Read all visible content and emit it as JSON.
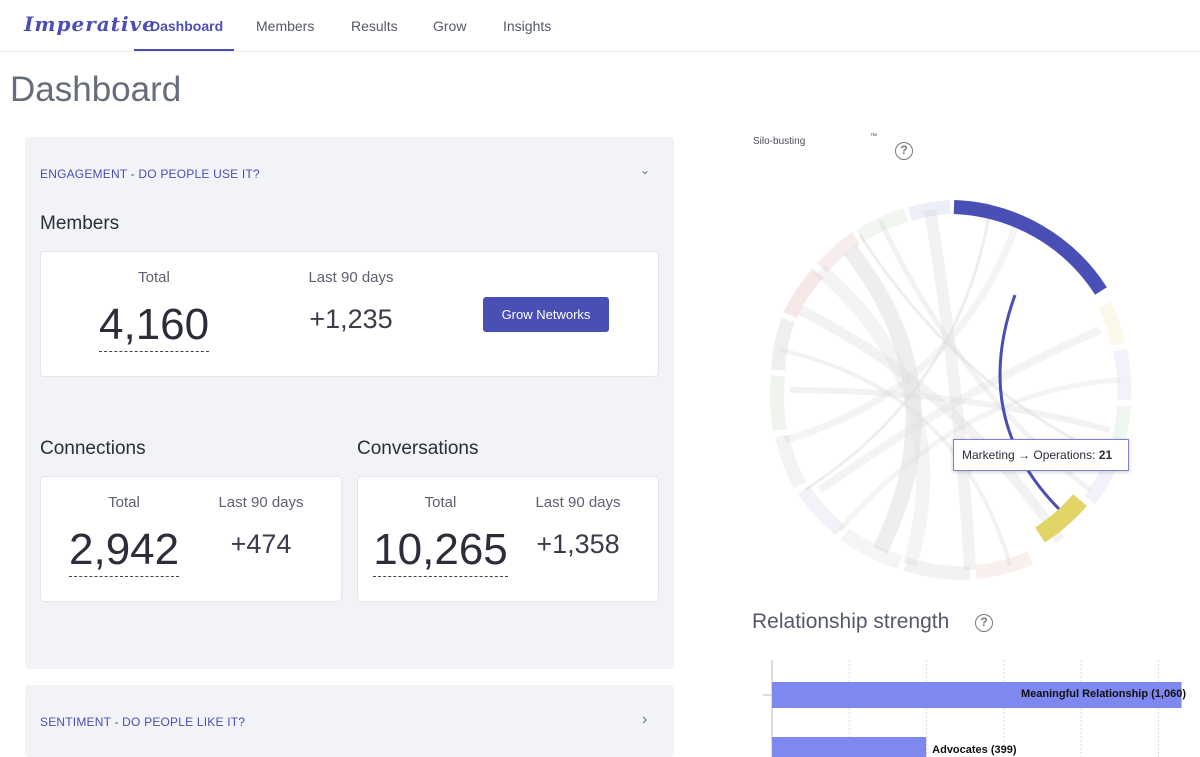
{
  "app": {
    "logo": "Imperative"
  },
  "nav": {
    "tabs": [
      {
        "label": "Dashboard",
        "active": true
      },
      {
        "label": "Members",
        "active": false
      },
      {
        "label": "Results",
        "active": false
      },
      {
        "label": "Grow",
        "active": false
      },
      {
        "label": "Insights",
        "active": false
      }
    ]
  },
  "page": {
    "title": "Dashboard"
  },
  "engagement": {
    "header": "ENGAGEMENT - DO PEOPLE USE IT?",
    "members": {
      "title": "Members",
      "total_label": "Total",
      "total_value": "4,160",
      "recent_label": "Last 90 days",
      "recent_value": "+1,235",
      "button_label": "Grow Networks"
    },
    "connections": {
      "title": "Connections",
      "total_label": "Total",
      "total_value": "2,942",
      "recent_label": "Last 90 days",
      "recent_value": "+474"
    },
    "conversations": {
      "title": "Conversations",
      "total_label": "Total",
      "total_value": "10,265",
      "recent_label": "Last 90 days",
      "recent_value": "+1,358"
    }
  },
  "sentiment": {
    "header": "SENTIMENT - DO PEOPLE LIKE IT?"
  },
  "silo": {
    "title": "Silo-busting",
    "trademark": "™",
    "tooltip": {
      "from": "Marketing",
      "arrow": "→",
      "to": "Operations:",
      "value": "21"
    }
  },
  "relationship": {
    "title": "Relationship strength"
  },
  "chart_data": {
    "type": "bar",
    "orientation": "horizontal",
    "title": "Relationship strength",
    "categories": [
      "Meaningful Relationship",
      "Advocates"
    ],
    "values": [
      1060,
      399
    ],
    "bar_labels": [
      "Meaningful Relationship (1,060)",
      "Advocates (399)"
    ],
    "xlim": [
      0,
      1100
    ],
    "grid": true,
    "colors": [
      "#7f88ee",
      "#7f88ee"
    ]
  },
  "colors": {
    "accent": "#4a4fb5",
    "panel_bg": "#f2f3f6",
    "bar": "#7f88ee",
    "highlight": "#e0d566"
  },
  "icons": {
    "chevron_down": "⌄",
    "chevron_right": "›",
    "help": "?"
  }
}
